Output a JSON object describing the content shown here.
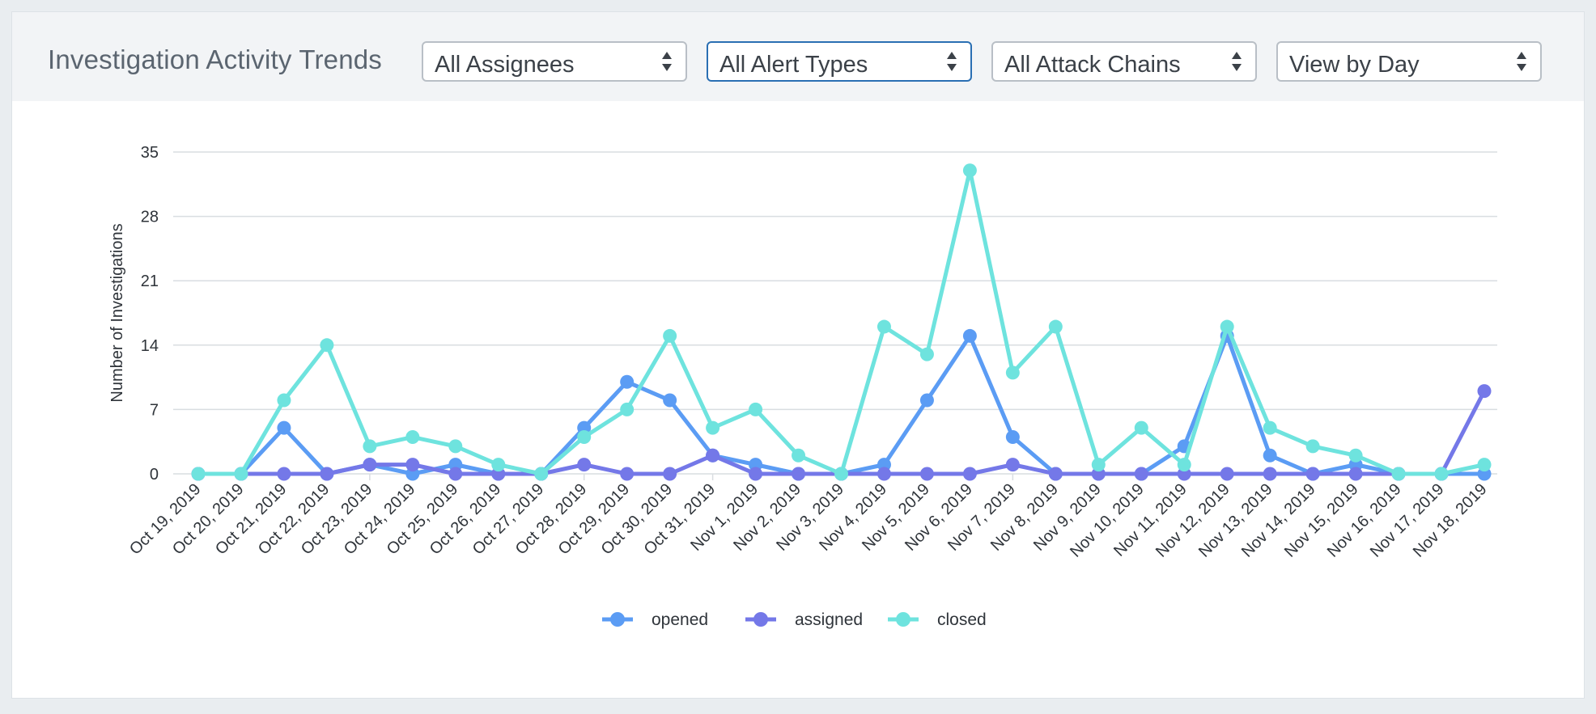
{
  "header": {
    "title": "Investigation Activity Trends",
    "filters": [
      {
        "name": "assignees-select",
        "value": "All Assignees"
      },
      {
        "name": "alert-types-select",
        "value": "All Alert Types"
      },
      {
        "name": "attack-chains-select",
        "value": "All Attack Chains"
      },
      {
        "name": "view-by-select",
        "value": "View by Day"
      }
    ]
  },
  "colors": {
    "opened": "#5b9cf4",
    "assigned": "#7478e8",
    "closed": "#6ee3de",
    "grid": "#d9dde1",
    "axis_text": "#2f343a"
  },
  "chart_data": {
    "type": "line",
    "title": "",
    "xlabel": "",
    "ylabel": "Number of Investigations",
    "ylim": [
      0,
      35
    ],
    "yticks": [
      0,
      7,
      14,
      21,
      28,
      35
    ],
    "grid": true,
    "legend": "bottom-center",
    "x": [
      "Oct 19, 2019",
      "Oct 20, 2019",
      "Oct 21, 2019",
      "Oct 22, 2019",
      "Oct 23, 2019",
      "Oct 24, 2019",
      "Oct 25, 2019",
      "Oct 26, 2019",
      "Oct 27, 2019",
      "Oct 28, 2019",
      "Oct 29, 2019",
      "Oct 30, 2019",
      "Oct 31, 2019",
      "Nov 1, 2019",
      "Nov 2, 2019",
      "Nov 3, 2019",
      "Nov 4, 2019",
      "Nov 5, 2019",
      "Nov 6, 2019",
      "Nov 7, 2019",
      "Nov 8, 2019",
      "Nov 9, 2019",
      "Nov 10, 2019",
      "Nov 11, 2019",
      "Nov 12, 2019",
      "Nov 13, 2019",
      "Nov 14, 2019",
      "Nov 15, 2019",
      "Nov 16, 2019",
      "Nov 17, 2019",
      "Nov 18, 2019"
    ],
    "series": [
      {
        "name": "opened",
        "values": [
          0,
          0,
          5,
          0,
          1,
          0,
          1,
          0,
          0,
          5,
          10,
          8,
          2,
          1,
          0,
          0,
          1,
          8,
          15,
          4,
          0,
          0,
          0,
          3,
          15,
          2,
          0,
          1,
          0,
          0,
          0
        ]
      },
      {
        "name": "assigned",
        "values": [
          0,
          0,
          0,
          0,
          1,
          1,
          0,
          0,
          0,
          1,
          0,
          0,
          2,
          0,
          0,
          0,
          0,
          0,
          0,
          1,
          0,
          0,
          0,
          0,
          0,
          0,
          0,
          0,
          0,
          0,
          9
        ]
      },
      {
        "name": "closed",
        "values": [
          0,
          0,
          8,
          14,
          3,
          4,
          3,
          1,
          0,
          4,
          7,
          15,
          5,
          7,
          2,
          0,
          16,
          13,
          33,
          11,
          16,
          1,
          5,
          1,
          16,
          5,
          3,
          2,
          0,
          0,
          1
        ]
      }
    ]
  }
}
